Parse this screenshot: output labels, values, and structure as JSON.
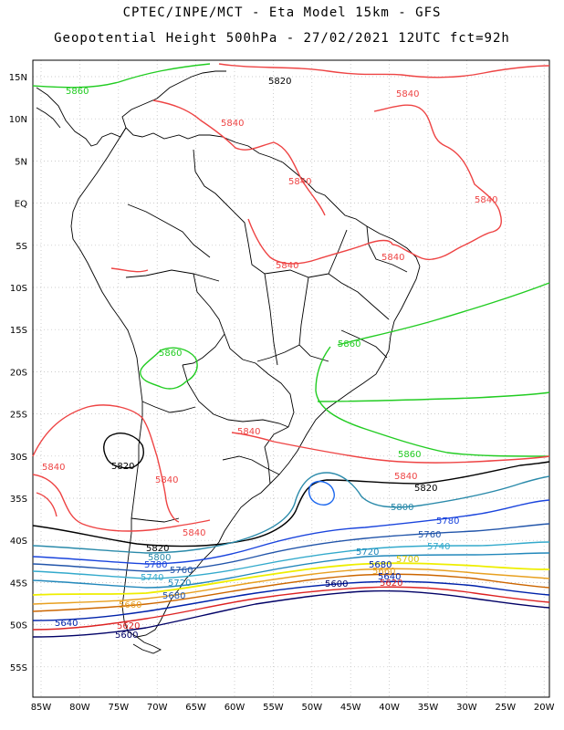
{
  "header": {
    "line1": "CPTEC/INPE/MCT -  Eta Model 15km - GFS",
    "line2": "Geopotential Height 500hPa - 27/02/2021 12UTC fct=92h"
  },
  "map": {
    "lat_labels": [
      "15N",
      "10N",
      "5N",
      "EQ",
      "5S",
      "10S",
      "15S",
      "20S",
      "25S",
      "30S",
      "35S",
      "40S",
      "45S",
      "50S",
      "55S"
    ],
    "lon_labels": [
      "85W",
      "80W",
      "75W",
      "70W",
      "65W",
      "60W",
      "55W",
      "50W",
      "45W",
      "40W",
      "35W",
      "30W",
      "25W",
      "20W"
    ],
    "contour_labels": {
      "c5860": "5860",
      "c5840": "5840",
      "c5820": "5820",
      "c5800": "5800",
      "c5780": "5780",
      "c5760": "5760",
      "c5740": "5740",
      "c5720": "5720",
      "c5700": "5700",
      "c5680": "5680",
      "c5660": "5660",
      "c5640": "5640",
      "c5620": "5620",
      "c5600": "5600"
    },
    "colors": {
      "c5860": "#22cc22",
      "c5840": "#ee4444",
      "c5820": "#000000",
      "c5800": "#2a8aaa",
      "c5780": "#1a44dd",
      "c5760": "#2255aa",
      "c5740": "#33aacc",
      "c5720": "#2288bb",
      "c5700": "#eeee00",
      "c5680": "#e8a020",
      "c5660": "#cc6600",
      "c5640": "#0022aa",
      "c5620": "#dd2222",
      "c5600": "#000066"
    }
  }
}
